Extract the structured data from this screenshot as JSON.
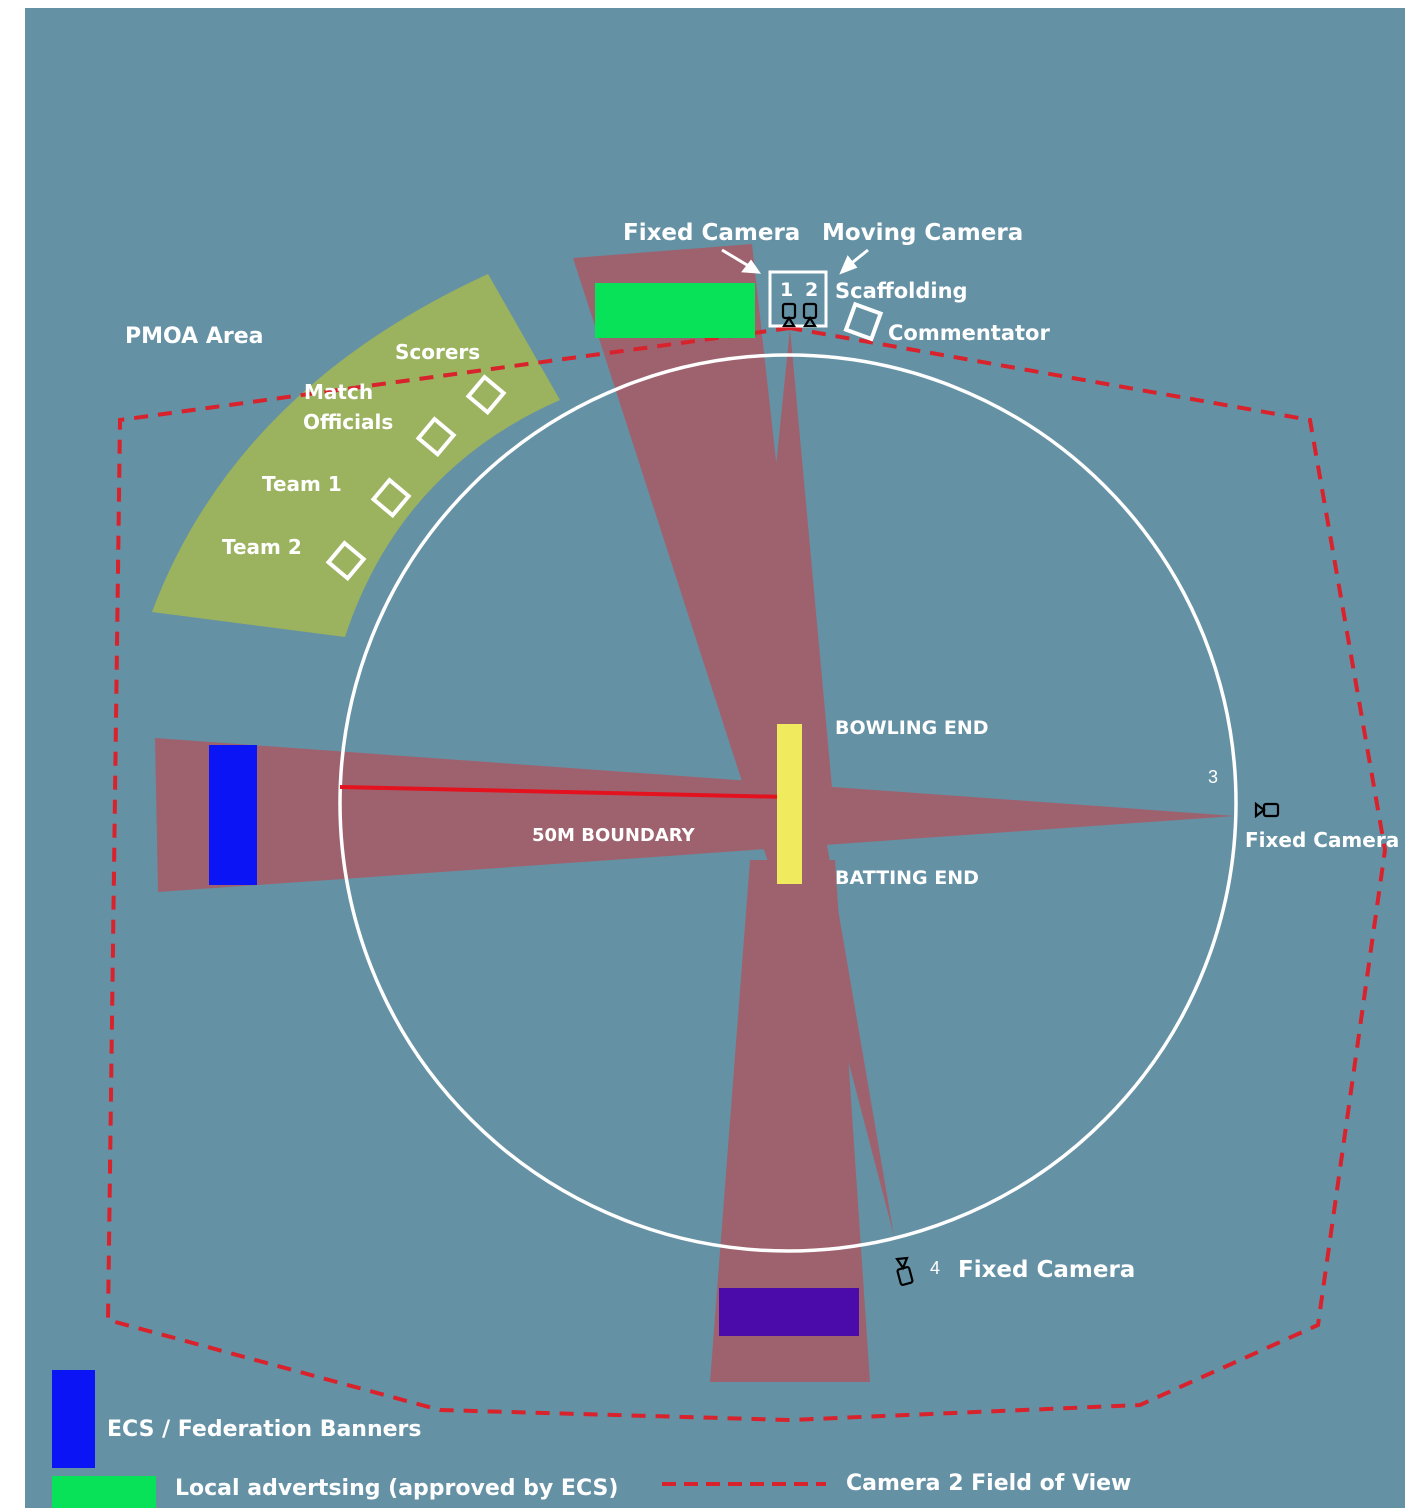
{
  "colors": {
    "field": "#6591a5",
    "pmoa": "#9bb25f",
    "fov": "#b2535e",
    "boundary": "#ffffff",
    "camera2_fov_line": "#d8222c",
    "pitch": "#f0ea5f",
    "banner_blue": "#0a14f5",
    "banner_green": "#08e258",
    "banner_purple": "#4b0bab",
    "boundary_radius_line": "#e4121e"
  },
  "labels": {
    "fixed_camera_top": "Fixed Camera",
    "moving_camera": "Moving Camera",
    "scaffolding": "Scaffolding",
    "commentator": "Commentator",
    "pmoa_area": "PMOA Area",
    "scorers": "Scorers",
    "match": "Match",
    "officials": "Officials",
    "team1": "Team 1",
    "team2": "Team 2",
    "bowling_end": "BOWLING END",
    "batting_end": "BATTING END",
    "boundary_50m": "50M BOUNDARY",
    "camera3_number": "3",
    "camera3_label": "Fixed Camera",
    "camera4_number": "4",
    "camera4_label": "Fixed Camera",
    "scaffold_cam1": "1",
    "scaffold_cam2": "2"
  },
  "legend": {
    "ecs_banners": "ECS / Federation Banners",
    "local_advertising": "Local advertsing (approved by ECS)",
    "camera2_fov": "Camera 2 Field of View"
  },
  "icons": {
    "camera": "video-camera-icon",
    "booth": "square-outline-icon"
  }
}
